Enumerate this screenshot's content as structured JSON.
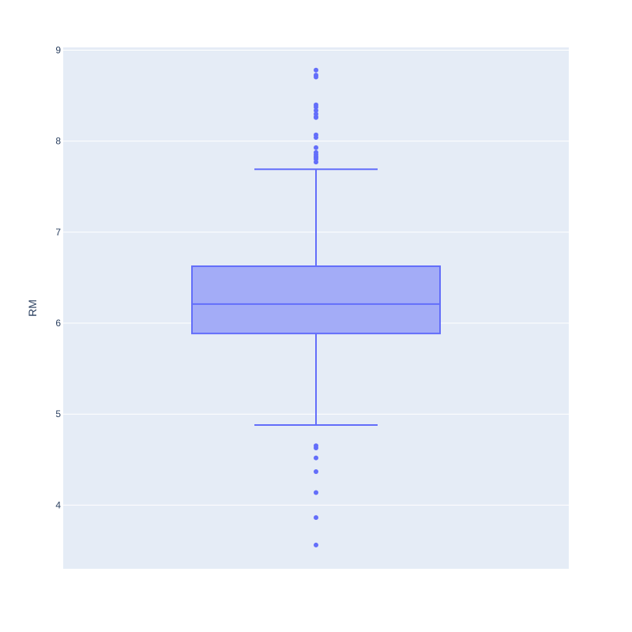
{
  "chart_data": {
    "type": "box",
    "title": "",
    "xlabel": "",
    "ylabel": "RM",
    "ylim": [
      3.3,
      9.03
    ],
    "yticks": [
      4,
      5,
      6,
      7,
      8,
      9
    ],
    "grid": true,
    "colors": {
      "plot_bg": "#E5ECF6",
      "grid": "#ffffff",
      "box_fill": "#A3ACF7",
      "box_line": "#636EFA",
      "tick_text": "#2a3f5f"
    },
    "box": {
      "whisker_low": 4.88,
      "q1": 5.886,
      "median": 6.209,
      "q3": 6.625,
      "whisker_high": 7.691
    },
    "outliers": [
      8.78,
      8.725,
      8.704,
      8.398,
      8.375,
      8.337,
      8.297,
      8.266,
      8.259,
      8.069,
      8.04,
      7.929,
      7.875,
      7.853,
      7.831,
      7.82,
      7.803,
      7.77,
      4.652,
      4.628,
      4.519,
      4.368,
      4.138,
      3.863,
      3.561
    ]
  }
}
